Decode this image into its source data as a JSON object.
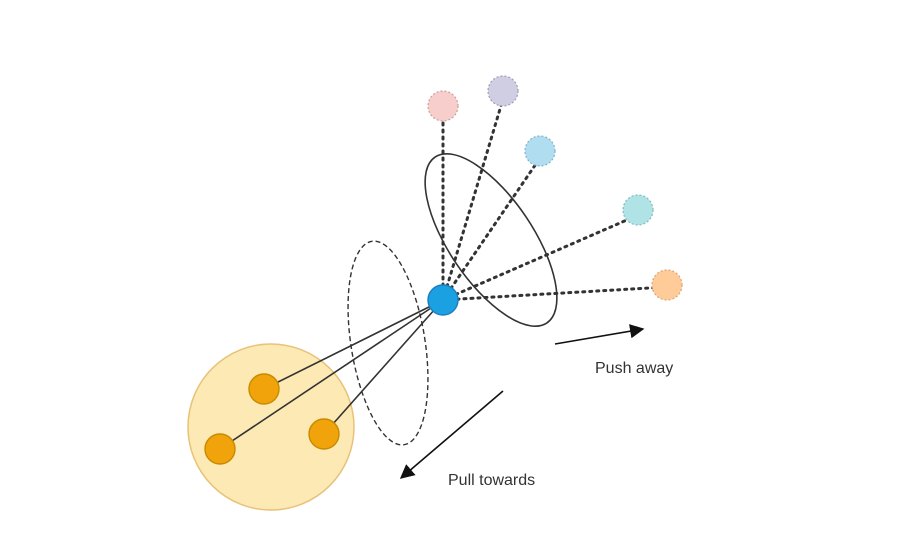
{
  "labels": {
    "push": "Push away",
    "pull": "Pull towards"
  },
  "colors": {
    "anchor": "#1ba1e2",
    "anchor_stroke": "#1a7fc0",
    "positive": "#f0a30a",
    "positive_stroke": "#c88a00",
    "positive_cluster_fill": "#fde9b3",
    "positive_cluster_stroke": "#e8c27a",
    "negative_pink": "#f8cecc",
    "negative_lavender": "#d0cee2",
    "negative_sky": "#b1ddf0",
    "negative_teal": "#b0e3e6",
    "negative_peach": "#ffcc99",
    "line": "#333333",
    "text": "#333333"
  },
  "nodes": {
    "anchor": "anchor",
    "positives": [
      "positive-1",
      "positive-2",
      "positive-3"
    ],
    "negatives": [
      "negative-pink",
      "negative-lavender",
      "negative-sky",
      "negative-teal",
      "negative-peach"
    ]
  }
}
